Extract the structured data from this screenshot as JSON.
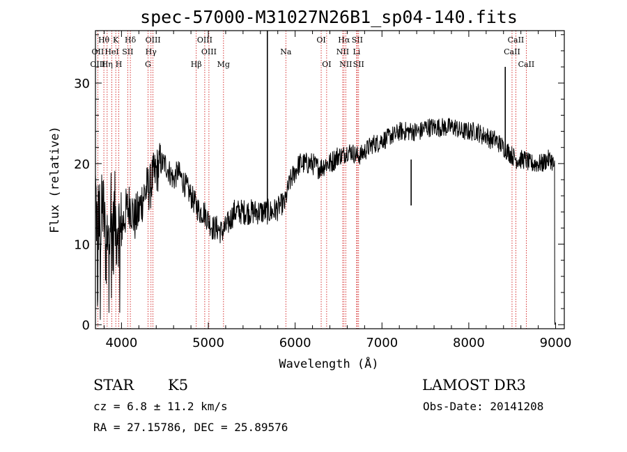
{
  "chart_data": {
    "type": "line",
    "title": "spec-57000-M31027N26B1_sp04-140.fits",
    "xlabel": "Wavelength (Å)",
    "ylabel": "Flux (relative)",
    "xlim": [
      3700,
      9100
    ],
    "ylim": [
      -0.5,
      36.5
    ],
    "xticks": [
      4000,
      5000,
      6000,
      7000,
      8000,
      9000
    ],
    "xtick_labels": [
      "4000",
      "5000",
      "6000",
      "7000",
      "8000",
      "9000"
    ],
    "yticks": [
      0,
      10,
      20,
      30
    ],
    "ytick_labels": [
      "0",
      "10",
      "20",
      "30"
    ],
    "grid": false,
    "line_color": "#000000",
    "marker_color": "#cc0000",
    "spectrum": {
      "name": "flux",
      "x": [
        3700,
        3720,
        3740,
        3760,
        3780,
        3800,
        3820,
        3840,
        3860,
        3880,
        3900,
        3920,
        3940,
        3960,
        3980,
        4000,
        4050,
        4100,
        4150,
        4200,
        4250,
        4300,
        4330,
        4350,
        4400,
        4450,
        4500,
        4550,
        4600,
        4650,
        4700,
        4750,
        4800,
        4850,
        4900,
        4950,
        5000,
        5050,
        5100,
        5150,
        5200,
        5250,
        5300,
        5350,
        5400,
        5450,
        5500,
        5550,
        5600,
        5650,
        5700,
        5750,
        5800,
        5850,
        5880,
        5900,
        5920,
        5950,
        6000,
        6050,
        6100,
        6150,
        6200,
        6250,
        6300,
        6350,
        6400,
        6450,
        6500,
        6550,
        6600,
        6650,
        6700,
        6750,
        6800,
        6850,
        6900,
        6950,
        7000,
        7050,
        7100,
        7150,
        7200,
        7250,
        7300,
        7350,
        7400,
        7450,
        7500,
        7550,
        7600,
        7650,
        7700,
        7750,
        7800,
        7850,
        7900,
        7950,
        8000,
        8050,
        8100,
        8150,
        8200,
        8250,
        8300,
        8350,
        8400,
        8450,
        8500,
        8550,
        8600,
        8650,
        8700,
        8750,
        8800,
        8850,
        8900,
        8950,
        8990
      ],
      "y": [
        17,
        12,
        14,
        11,
        15,
        13,
        9,
        12,
        14,
        15,
        10,
        14,
        12,
        13,
        11,
        12,
        14,
        15,
        13,
        14,
        16,
        17,
        17,
        18,
        19,
        20,
        20,
        19,
        18,
        19,
        18,
        17,
        16,
        15,
        14,
        14,
        13,
        12,
        12,
        11.5,
        12,
        13,
        14,
        14,
        14,
        14,
        14,
        14,
        14,
        14,
        14,
        14,
        14.5,
        15,
        15,
        16,
        17,
        18,
        19,
        20,
        20,
        20,
        20,
        19.5,
        19.5,
        20,
        20,
        20.5,
        21,
        21,
        21.5,
        21.5,
        21,
        21,
        21.5,
        22,
        22.5,
        22.5,
        23,
        23,
        23.5,
        23.5,
        24,
        24,
        24,
        24,
        24,
        24,
        24.5,
        24.5,
        24.5,
        24.5,
        24.5,
        24.5,
        24.5,
        24.5,
        24,
        24,
        24,
        24,
        24,
        23.5,
        23.5,
        23,
        23,
        22.5,
        22,
        21.5,
        21,
        20.5,
        20.5,
        20.5,
        20,
        20,
        20,
        20,
        20.5,
        20.5,
        19.5
      ]
    },
    "features": [
      {
        "x": 5680,
        "y_bottom": 13,
        "y_top": 36.5
      },
      {
        "x": 7336,
        "y_bottom": 14.8,
        "y_top": 20.5
      },
      {
        "x": 8420,
        "y_bottom": 21,
        "y_top": 32
      }
    ],
    "line_markers": [
      {
        "label": "Hθ",
        "wavelength": 3797,
        "row": 1
      },
      {
        "label": "OII",
        "wavelength": 3727,
        "row": 2
      },
      {
        "label": "OIII",
        "wavelength": 3727,
        "row": 3
      },
      {
        "label": "K",
        "wavelength": 3934,
        "row": 1
      },
      {
        "label": "HeI",
        "wavelength": 3889,
        "row": 2
      },
      {
        "label": "Hη",
        "wavelength": 3835,
        "row": 3
      },
      {
        "label": "SII",
        "wavelength": 4072,
        "row": 2
      },
      {
        "label": "H",
        "wavelength": 3969,
        "row": 3
      },
      {
        "label": "Hδ",
        "wavelength": 4102,
        "row": 1
      },
      {
        "label": "OIII",
        "wavelength": 4363,
        "row": 1
      },
      {
        "label": "Hγ",
        "wavelength": 4340,
        "row": 2
      },
      {
        "label": "G",
        "wavelength": 4305,
        "row": 3
      },
      {
        "label": "OIII",
        "wavelength": 4959,
        "row": 1
      },
      {
        "label": "OIII",
        "wavelength": 5007,
        "row": 2
      },
      {
        "label": "Hβ",
        "wavelength": 4861,
        "row": 3
      },
      {
        "label": "Mg",
        "wavelength": 5175,
        "row": 3
      },
      {
        "label": "Na",
        "wavelength": 5893,
        "row": 2
      },
      {
        "label": "OI",
        "wavelength": 6300,
        "row": 1
      },
      {
        "label": "OI",
        "wavelength": 6363,
        "row": 3
      },
      {
        "label": "Hα",
        "wavelength": 6563,
        "row": 1
      },
      {
        "label": "NII",
        "wavelength": 6548,
        "row": 2
      },
      {
        "label": "NII",
        "wavelength": 6583,
        "row": 3
      },
      {
        "label": "SII",
        "wavelength": 6716,
        "row": 1
      },
      {
        "label": "Li",
        "wavelength": 6708,
        "row": 2
      },
      {
        "label": "SII",
        "wavelength": 6731,
        "row": 3
      },
      {
        "label": "CaII",
        "wavelength": 8542,
        "row": 1
      },
      {
        "label": "CaII",
        "wavelength": 8498,
        "row": 2
      },
      {
        "label": "CaII",
        "wavelength": 8662,
        "row": 3
      }
    ]
  },
  "info": {
    "object_class": "STAR",
    "subclass": "K5",
    "survey": "LAMOST DR3",
    "redshift_line": "cz = 6.8 ± 11.2 km/s",
    "obs_date_line": "Obs-Date: 20141208",
    "coords_line": "RA =  27.15786, DEC =  25.89576"
  }
}
